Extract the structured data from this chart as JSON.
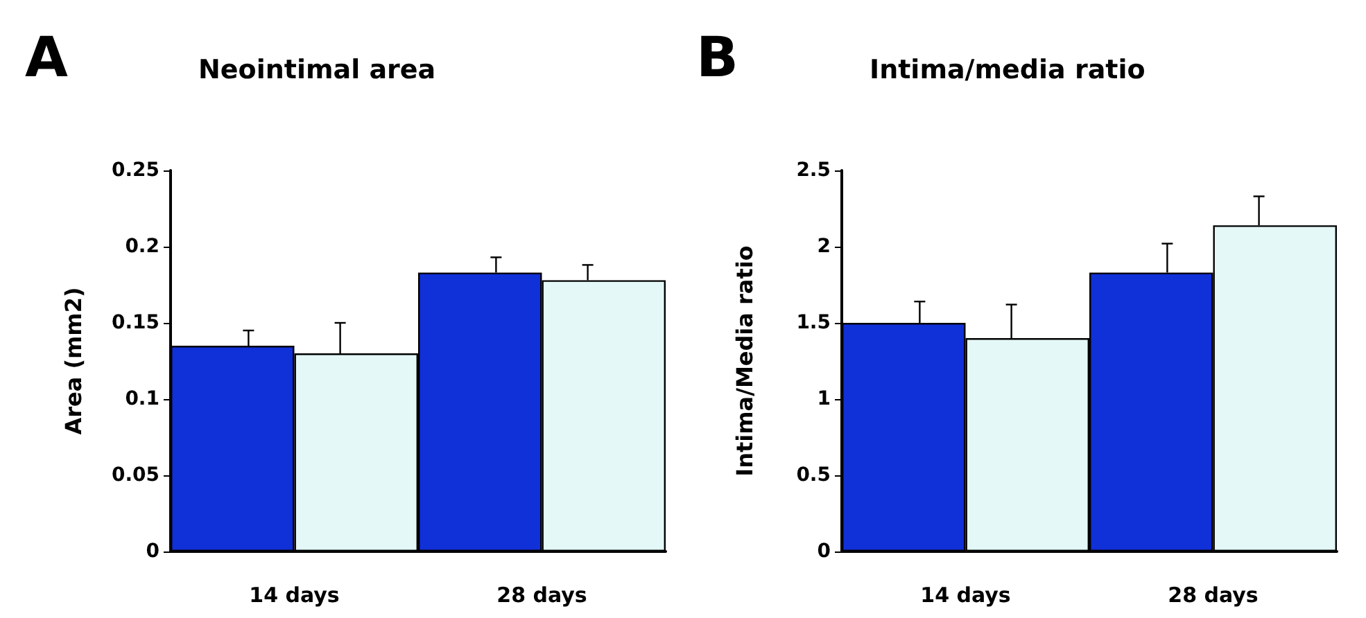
{
  "chart_data": [
    {
      "type": "bar",
      "title": "Neointimal area",
      "ylabel": "Area (mm2)",
      "annotations": [
        "A"
      ],
      "categories": [
        "14 days",
        "28 days"
      ],
      "series": [
        {
          "color": "#1030d8",
          "values": [
            0.135,
            0.183
          ],
          "errors": [
            0.01,
            0.01
          ]
        },
        {
          "color": "#e4f8f8",
          "values": [
            0.13,
            0.178
          ],
          "errors": [
            0.02,
            0.01
          ]
        }
      ],
      "ylim": [
        0,
        0.25
      ],
      "yticks": [
        0,
        0.05,
        0.1,
        0.15,
        0.2,
        0.25
      ],
      "grid": false
    },
    {
      "type": "bar",
      "title": "Intima/media ratio",
      "ylabel": "Intima/Media ratio",
      "annotations": [
        "B"
      ],
      "categories": [
        "14 days",
        "28 days"
      ],
      "series": [
        {
          "color": "#1030d8",
          "values": [
            1.5,
            1.83
          ],
          "errors": [
            0.14,
            0.19
          ]
        },
        {
          "color": "#e4f8f8",
          "values": [
            1.4,
            2.14
          ],
          "errors": [
            0.22,
            0.19
          ]
        }
      ],
      "ylim": [
        0,
        2.5
      ],
      "yticks": [
        0,
        0.5,
        1,
        1.5,
        2,
        2.5
      ],
      "grid": false
    }
  ]
}
